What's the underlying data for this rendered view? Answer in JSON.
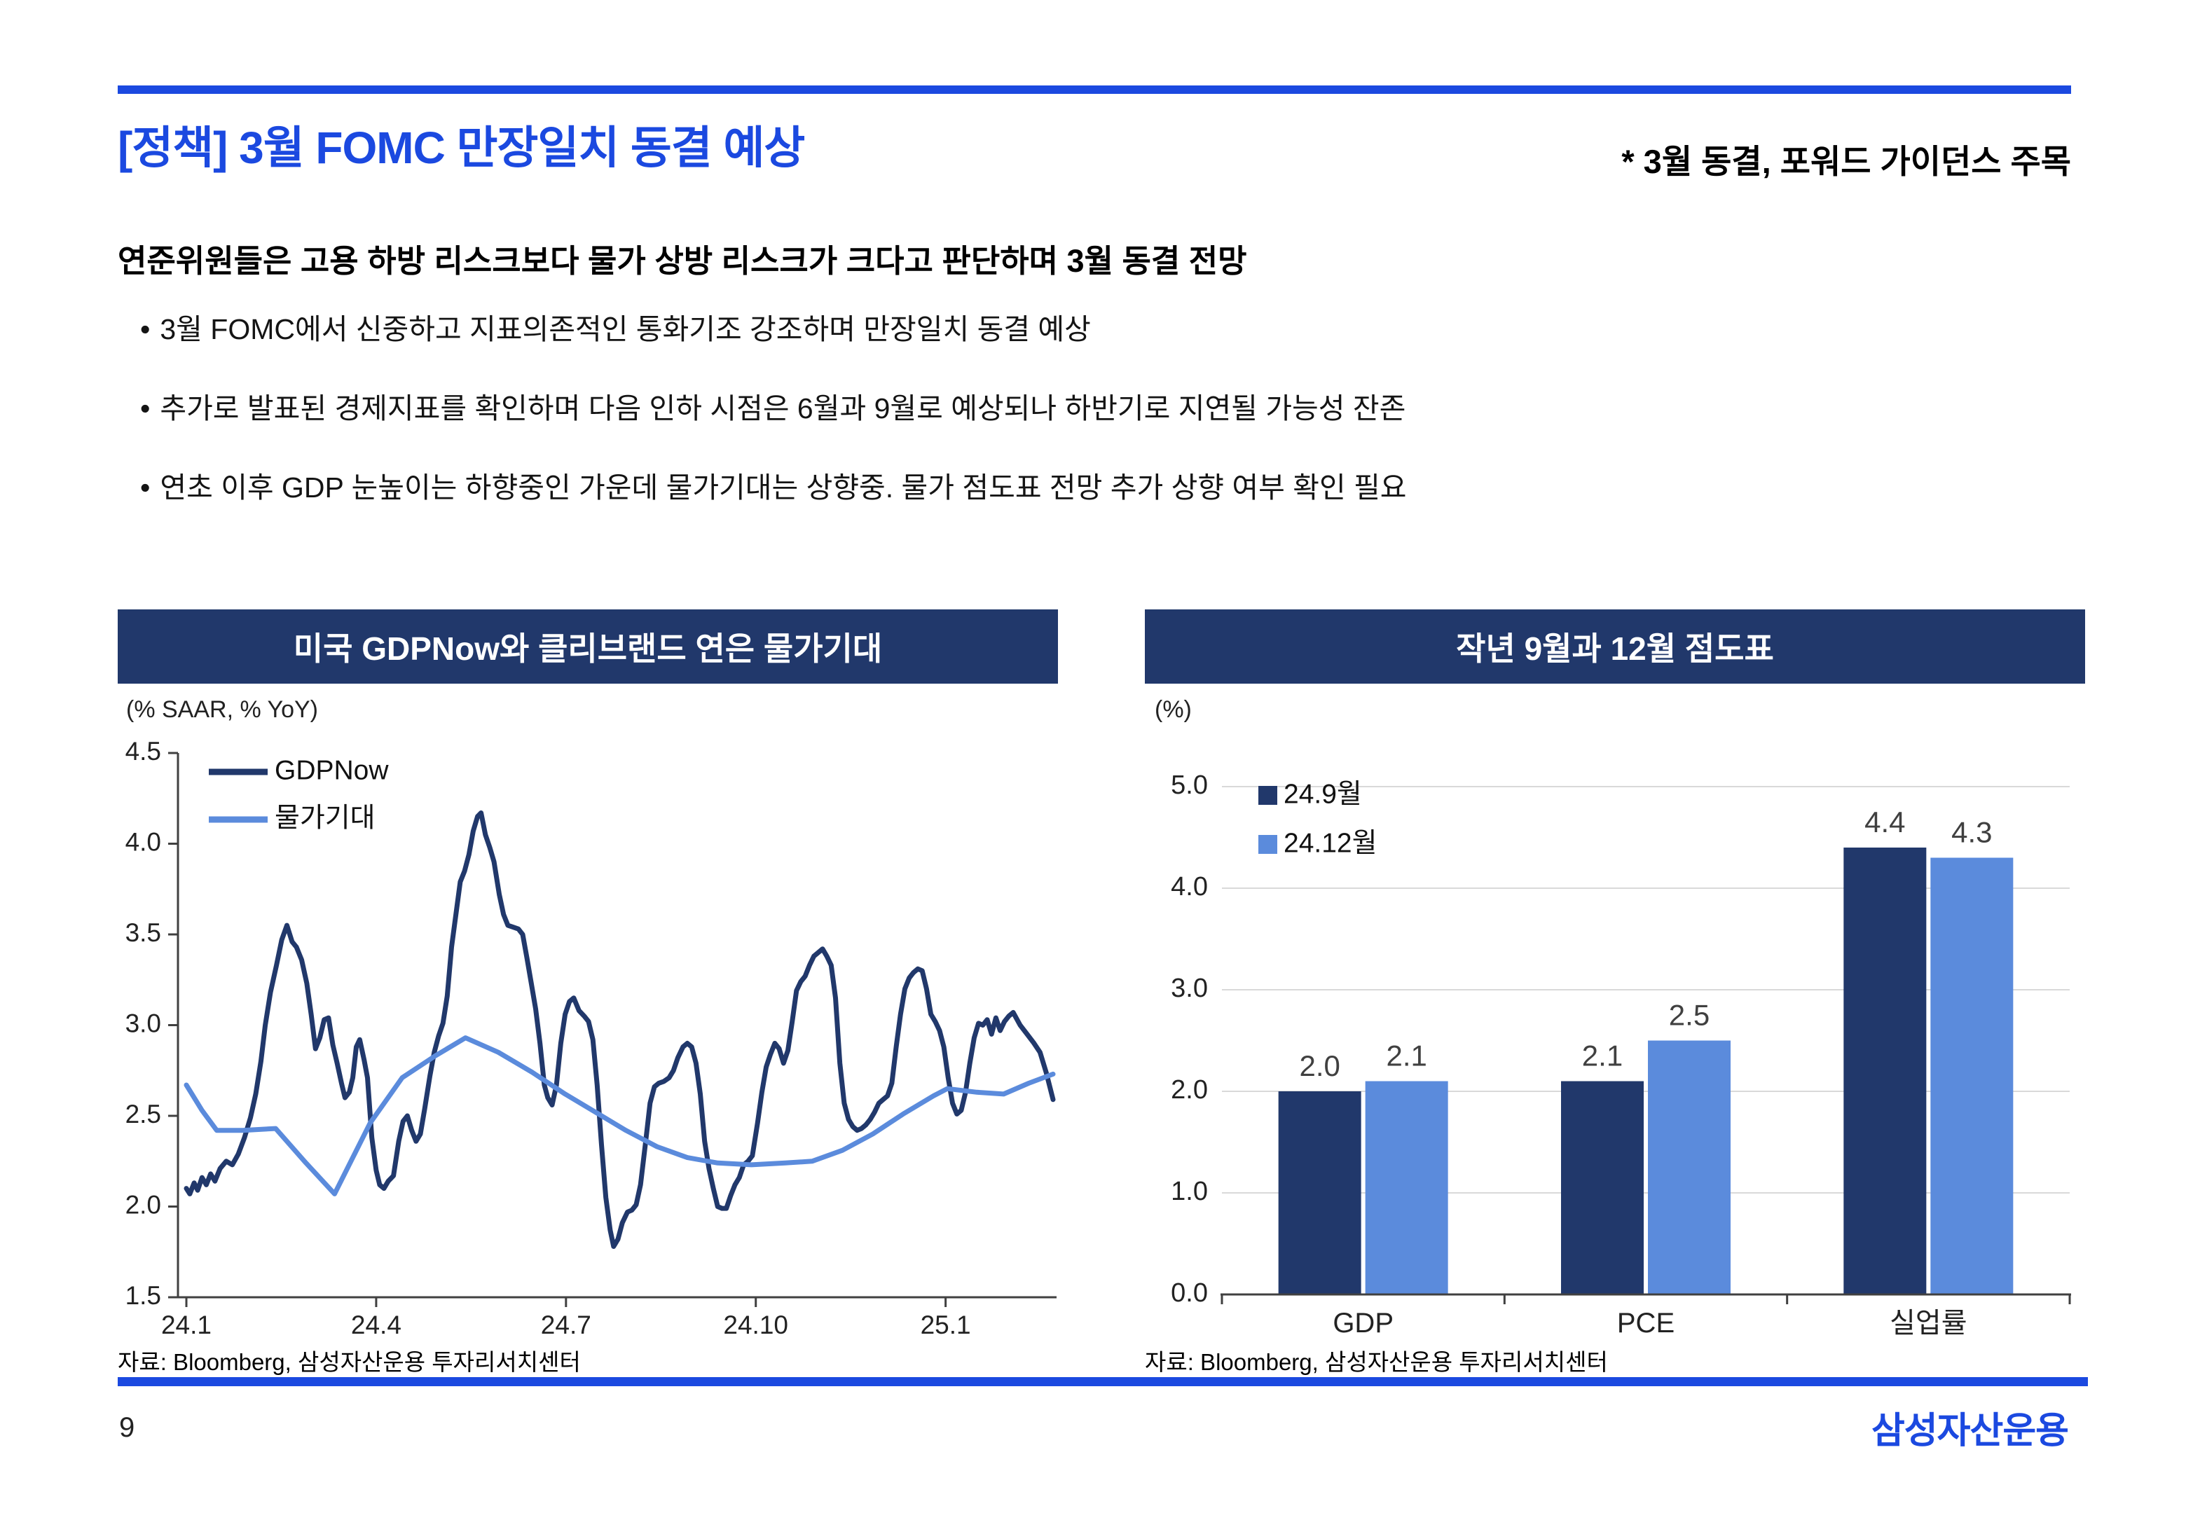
{
  "page": {
    "number": "9",
    "logo_text": "삼성자산운용"
  },
  "colors": {
    "brand_blue": "#1b49e0",
    "navy": "#21386b",
    "light_blue": "#5b8bdc",
    "axis": "#404040",
    "gridline": "#d9d9d9",
    "value_label": "#404040"
  },
  "header": {
    "title": "[정책] 3월 FOMC 만장일치 동결 예상",
    "subtitle": "* 3월 동결, 포워드 가이던스 주목"
  },
  "summary": {
    "heading": "연준위원들은 고용 하방 리스크보다 물가 상방 리스크가 크다고 판단하며 3월 동결 전망",
    "bullet_char": "•",
    "bullets": [
      "3월 FOMC에서 신중하고 지표의존적인 통화기조 강조하며 만장일치 동결 예상",
      "추가로 발표된 경제지표를 확인하며 다음 인하 시점은 6월과 9월로 예상되나 하반기로 지연될 가능성 잔존",
      "연초 이후 GDP 눈높이는 하향중인 가운데 물가기대는 상향중. 물가 점도표 전망 추가 상향 여부 확인 필요"
    ]
  },
  "chart_data": [
    {
      "type": "line",
      "title": "미국 GDPNow와 클리브랜드 연은 물가기대",
      "unit_label": "(% SAAR, % YoY)",
      "source": "자료: Bloomberg, 삼성자산운용 투자리서치센터",
      "ylim": [
        1.5,
        4.5
      ],
      "yticks": [
        "4.5",
        "4.0",
        "3.5",
        "3.0",
        "2.5",
        "2.0",
        "1.5"
      ],
      "xticks": [
        {
          "label": "24.1",
          "t": 0.0
        },
        {
          "label": "24.4",
          "t": 0.219
        },
        {
          "label": "24.7",
          "t": 0.438
        },
        {
          "label": "24.10",
          "t": 0.657
        },
        {
          "label": "25.1",
          "t": 0.876
        }
      ],
      "grid": false,
      "legend_position": "top-left-inside",
      "series": [
        {
          "name": "GDPNow",
          "color": "#21386b",
          "points": [
            [
              0.0,
              2.1
            ],
            [
              0.004,
              2.07
            ],
            [
              0.009,
              2.13
            ],
            [
              0.013,
              2.09
            ],
            [
              0.018,
              2.16
            ],
            [
              0.023,
              2.12
            ],
            [
              0.028,
              2.18
            ],
            [
              0.033,
              2.14
            ],
            [
              0.039,
              2.21
            ],
            [
              0.046,
              2.25
            ],
            [
              0.053,
              2.23
            ],
            [
              0.06,
              2.29
            ],
            [
              0.067,
              2.38
            ],
            [
              0.074,
              2.49
            ],
            [
              0.08,
              2.62
            ],
            [
              0.086,
              2.8
            ],
            [
              0.091,
              3.0
            ],
            [
              0.097,
              3.18
            ],
            [
              0.104,
              3.33
            ],
            [
              0.11,
              3.47
            ],
            [
              0.116,
              3.55
            ],
            [
              0.122,
              3.46
            ],
            [
              0.127,
              3.43
            ],
            [
              0.133,
              3.36
            ],
            [
              0.139,
              3.23
            ],
            [
              0.144,
              3.06
            ],
            [
              0.149,
              2.87
            ],
            [
              0.154,
              2.93
            ],
            [
              0.159,
              3.03
            ],
            [
              0.164,
              3.04
            ],
            [
              0.169,
              2.89
            ],
            [
              0.174,
              2.79
            ],
            [
              0.179,
              2.68
            ],
            [
              0.183,
              2.6
            ],
            [
              0.188,
              2.63
            ],
            [
              0.192,
              2.71
            ],
            [
              0.196,
              2.88
            ],
            [
              0.2,
              2.92
            ],
            [
              0.205,
              2.81
            ],
            [
              0.209,
              2.71
            ],
            [
              0.214,
              2.38
            ],
            [
              0.219,
              2.2
            ],
            [
              0.223,
              2.12
            ],
            [
              0.228,
              2.1
            ],
            [
              0.233,
              2.14
            ],
            [
              0.239,
              2.17
            ],
            [
              0.245,
              2.36
            ],
            [
              0.25,
              2.47
            ],
            [
              0.255,
              2.5
            ],
            [
              0.26,
              2.42
            ],
            [
              0.265,
              2.36
            ],
            [
              0.27,
              2.4
            ],
            [
              0.275,
              2.54
            ],
            [
              0.281,
              2.72
            ],
            [
              0.286,
              2.85
            ],
            [
              0.291,
              2.94
            ],
            [
              0.296,
              3.01
            ],
            [
              0.301,
              3.16
            ],
            [
              0.306,
              3.43
            ],
            [
              0.311,
              3.61
            ],
            [
              0.316,
              3.79
            ],
            [
              0.321,
              3.85
            ],
            [
              0.326,
              3.94
            ],
            [
              0.331,
              4.07
            ],
            [
              0.336,
              4.15
            ],
            [
              0.34,
              4.17
            ],
            [
              0.345,
              4.05
            ],
            [
              0.35,
              3.98
            ],
            [
              0.355,
              3.9
            ],
            [
              0.361,
              3.72
            ],
            [
              0.366,
              3.61
            ],
            [
              0.371,
              3.55
            ],
            [
              0.377,
              3.54
            ],
            [
              0.383,
              3.53
            ],
            [
              0.388,
              3.5
            ],
            [
              0.393,
              3.37
            ],
            [
              0.398,
              3.23
            ],
            [
              0.403,
              3.09
            ],
            [
              0.408,
              2.9
            ],
            [
              0.413,
              2.67
            ],
            [
              0.417,
              2.6
            ],
            [
              0.422,
              2.56
            ],
            [
              0.427,
              2.67
            ],
            [
              0.432,
              2.9
            ],
            [
              0.437,
              3.06
            ],
            [
              0.442,
              3.13
            ],
            [
              0.447,
              3.15
            ],
            [
              0.453,
              3.08
            ],
            [
              0.459,
              3.05
            ],
            [
              0.464,
              3.02
            ],
            [
              0.469,
              2.92
            ],
            [
              0.474,
              2.67
            ],
            [
              0.479,
              2.34
            ],
            [
              0.484,
              2.05
            ],
            [
              0.489,
              1.87
            ],
            [
              0.493,
              1.78
            ],
            [
              0.498,
              1.82
            ],
            [
              0.503,
              1.91
            ],
            [
              0.509,
              1.97
            ],
            [
              0.514,
              1.98
            ],
            [
              0.519,
              2.01
            ],
            [
              0.524,
              2.12
            ],
            [
              0.53,
              2.36
            ],
            [
              0.535,
              2.57
            ],
            [
              0.54,
              2.66
            ],
            [
              0.545,
              2.68
            ],
            [
              0.551,
              2.69
            ],
            [
              0.557,
              2.71
            ],
            [
              0.562,
              2.75
            ],
            [
              0.567,
              2.82
            ],
            [
              0.573,
              2.88
            ],
            [
              0.578,
              2.9
            ],
            [
              0.583,
              2.88
            ],
            [
              0.588,
              2.79
            ],
            [
              0.593,
              2.62
            ],
            [
              0.598,
              2.36
            ],
            [
              0.603,
              2.21
            ],
            [
              0.608,
              2.1
            ],
            [
              0.613,
              2.0
            ],
            [
              0.618,
              1.99
            ],
            [
              0.623,
              1.99
            ],
            [
              0.628,
              2.06
            ],
            [
              0.633,
              2.12
            ],
            [
              0.638,
              2.16
            ],
            [
              0.643,
              2.23
            ],
            [
              0.648,
              2.25
            ],
            [
              0.653,
              2.28
            ],
            [
              0.659,
              2.46
            ],
            [
              0.664,
              2.63
            ],
            [
              0.669,
              2.77
            ],
            [
              0.674,
              2.84
            ],
            [
              0.679,
              2.9
            ],
            [
              0.684,
              2.87
            ],
            [
              0.689,
              2.79
            ],
            [
              0.694,
              2.86
            ],
            [
              0.699,
              3.02
            ],
            [
              0.704,
              3.19
            ],
            [
              0.709,
              3.24
            ],
            [
              0.714,
              3.27
            ],
            [
              0.719,
              3.33
            ],
            [
              0.724,
              3.38
            ],
            [
              0.729,
              3.4
            ],
            [
              0.734,
              3.42
            ],
            [
              0.739,
              3.38
            ],
            [
              0.744,
              3.33
            ],
            [
              0.749,
              3.15
            ],
            [
              0.754,
              2.79
            ],
            [
              0.759,
              2.57
            ],
            [
              0.764,
              2.48
            ],
            [
              0.769,
              2.44
            ],
            [
              0.774,
              2.42
            ],
            [
              0.779,
              2.43
            ],
            [
              0.784,
              2.45
            ],
            [
              0.789,
              2.48
            ],
            [
              0.794,
              2.52
            ],
            [
              0.799,
              2.57
            ],
            [
              0.804,
              2.59
            ],
            [
              0.809,
              2.61
            ],
            [
              0.814,
              2.68
            ],
            [
              0.819,
              2.88
            ],
            [
              0.824,
              3.06
            ],
            [
              0.829,
              3.2
            ],
            [
              0.834,
              3.26
            ],
            [
              0.839,
              3.29
            ],
            [
              0.844,
              3.31
            ],
            [
              0.849,
              3.3
            ],
            [
              0.854,
              3.2
            ],
            [
              0.859,
              3.06
            ],
            [
              0.864,
              3.02
            ],
            [
              0.869,
              2.97
            ],
            [
              0.874,
              2.88
            ],
            [
              0.879,
              2.71
            ],
            [
              0.884,
              2.57
            ],
            [
              0.889,
              2.51
            ],
            [
              0.894,
              2.53
            ],
            [
              0.899,
              2.63
            ],
            [
              0.904,
              2.79
            ],
            [
              0.909,
              2.93
            ],
            [
              0.914,
              3.01
            ],
            [
              0.919,
              3.0
            ],
            [
              0.924,
              3.03
            ],
            [
              0.929,
              2.95
            ],
            [
              0.934,
              3.04
            ],
            [
              0.939,
              2.97
            ],
            [
              0.944,
              3.02
            ],
            [
              0.949,
              3.05
            ],
            [
              0.954,
              3.07
            ],
            [
              0.962,
              3.0
            ],
            [
              0.97,
              2.95
            ],
            [
              0.978,
              2.9
            ],
            [
              0.985,
              2.85
            ],
            [
              0.992,
              2.74
            ],
            [
              1.0,
              2.59
            ]
          ]
        },
        {
          "name": "물가기대",
          "color": "#5b8bdc",
          "points": [
            [
              0.0,
              2.67
            ],
            [
              0.018,
              2.53
            ],
            [
              0.035,
              2.42
            ],
            [
              0.065,
              2.42
            ],
            [
              0.103,
              2.43
            ],
            [
              0.138,
              2.24
            ],
            [
              0.171,
              2.07
            ],
            [
              0.212,
              2.46
            ],
            [
              0.249,
              2.71
            ],
            [
              0.287,
              2.83
            ],
            [
              0.322,
              2.93
            ],
            [
              0.36,
              2.85
            ],
            [
              0.399,
              2.74
            ],
            [
              0.437,
              2.62
            ],
            [
              0.472,
              2.52
            ],
            [
              0.507,
              2.42
            ],
            [
              0.543,
              2.33
            ],
            [
              0.578,
              2.27
            ],
            [
              0.613,
              2.24
            ],
            [
              0.652,
              2.23
            ],
            [
              0.691,
              2.24
            ],
            [
              0.722,
              2.25
            ],
            [
              0.757,
              2.31
            ],
            [
              0.792,
              2.4
            ],
            [
              0.827,
              2.51
            ],
            [
              0.862,
              2.61
            ],
            [
              0.878,
              2.65
            ],
            [
              0.912,
              2.63
            ],
            [
              0.943,
              2.62
            ],
            [
              0.972,
              2.68
            ],
            [
              1.0,
              2.73
            ]
          ]
        }
      ]
    },
    {
      "type": "bar",
      "title": "작년 9월과 12월 점도표",
      "unit_label": "(%)",
      "source": "자료: Bloomberg, 삼성자산운용 투자리서치센터",
      "ylim": [
        0,
        5
      ],
      "yticks": [
        "5.0",
        "4.0",
        "3.0",
        "2.0",
        "1.0",
        "0.0"
      ],
      "grid": true,
      "legend_position": "top-left-inside",
      "categories": [
        "GDP",
        "PCE",
        "실업률"
      ],
      "series": [
        {
          "name": "24.9월",
          "color": "#21386b",
          "values": [
            2.0,
            2.1,
            4.4
          ]
        },
        {
          "name": "24.12월",
          "color": "#5b8bdc",
          "values": [
            2.1,
            2.5,
            4.3
          ]
        }
      ]
    }
  ]
}
